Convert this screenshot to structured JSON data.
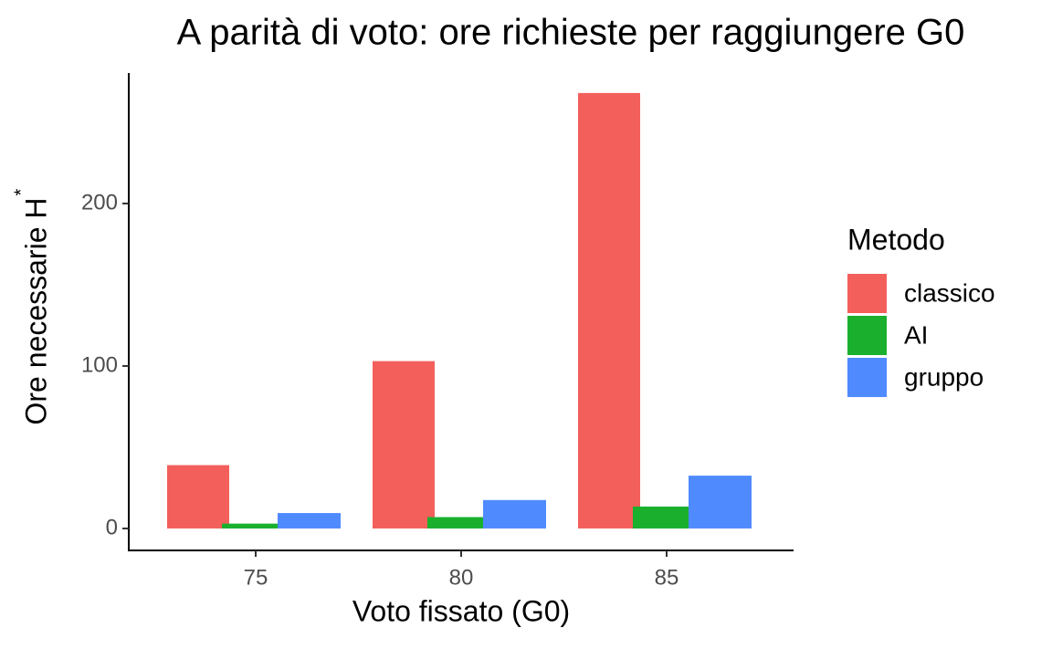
{
  "chart_data": {
    "type": "bar",
    "title": "A parità di voto: ore richieste per raggiungere G0",
    "xlabel": "Voto fissato (G0)",
    "ylabel": "Ore necessarie H",
    "ylabel_sup": "*",
    "legend_title": "Metodo",
    "categories": [
      "75",
      "80",
      "85"
    ],
    "series": [
      {
        "name": "classico",
        "color": "#F35F5B",
        "values": [
          39,
          103,
          268
        ]
      },
      {
        "name": "AI",
        "color": "#1AB02E",
        "values": [
          3,
          7,
          13.5
        ]
      },
      {
        "name": "gruppo",
        "color": "#4F8BFF",
        "values": [
          9.5,
          17.5,
          32.5
        ]
      }
    ],
    "ylim": [
      -13.5,
      280.3
    ],
    "yticks": [
      0,
      100,
      200
    ],
    "legend": "right"
  }
}
